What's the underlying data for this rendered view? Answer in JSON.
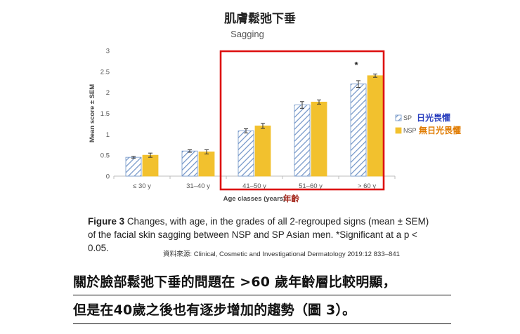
{
  "chart_data": {
    "type": "bar",
    "title": "肌膚鬆弛下垂",
    "subtitle": "Sagging",
    "xlabel": "Age classes (years)",
    "xlabel_annotation": "年齡",
    "ylabel": "Mean score ± SEM",
    "ylim": [
      0,
      3
    ],
    "yticks": [
      "0",
      "0.5",
      "1",
      "1.5",
      "2",
      "2.5",
      "3"
    ],
    "categories": [
      "≤ 30 y",
      "31–40 y",
      "41–50 y",
      "51–60 y",
      "> 60 y"
    ],
    "series": [
      {
        "name": "SP",
        "legend_label": "日光畏懼",
        "pattern": "hatched",
        "color": "#6f93c7",
        "values": [
          0.45,
          0.6,
          1.08,
          1.7,
          2.2
        ],
        "errors": [
          0.02,
          0.03,
          0.05,
          0.08,
          0.08
        ]
      },
      {
        "name": "NSP",
        "legend_label": "無日光畏懼",
        "pattern": "solid",
        "color": "#f2c12e",
        "values": [
          0.5,
          0.58,
          1.2,
          1.77,
          2.4
        ],
        "errors": [
          0.05,
          0.05,
          0.06,
          0.05,
          0.04
        ]
      }
    ],
    "annotations": {
      "significance_marker": "*",
      "highlight_color": "#dd1111",
      "legend_text_color": "#e07b00",
      "legend_sp_text_color": "#2a3fbf"
    },
    "grid": false,
    "legend_position": "right"
  },
  "caption": {
    "figure_label": "Figure 3",
    "text": "Changes, with age, in the grades of all 2-regrouped signs (mean ± SEM) of the facial skin sagging between NSP and SP Asian men. *Significant at a p < 0.05."
  },
  "source": "資料來源: Clinical, Cosmetic and Investigational Dermatology 2019:12 833–841",
  "summary": {
    "line1": "關於臉部鬆弛下垂的問題在 >60 歲年齡層比較明顯，",
    "line2": "但是在40歲之後也有逐步增加的趨勢（圖 3）。"
  }
}
